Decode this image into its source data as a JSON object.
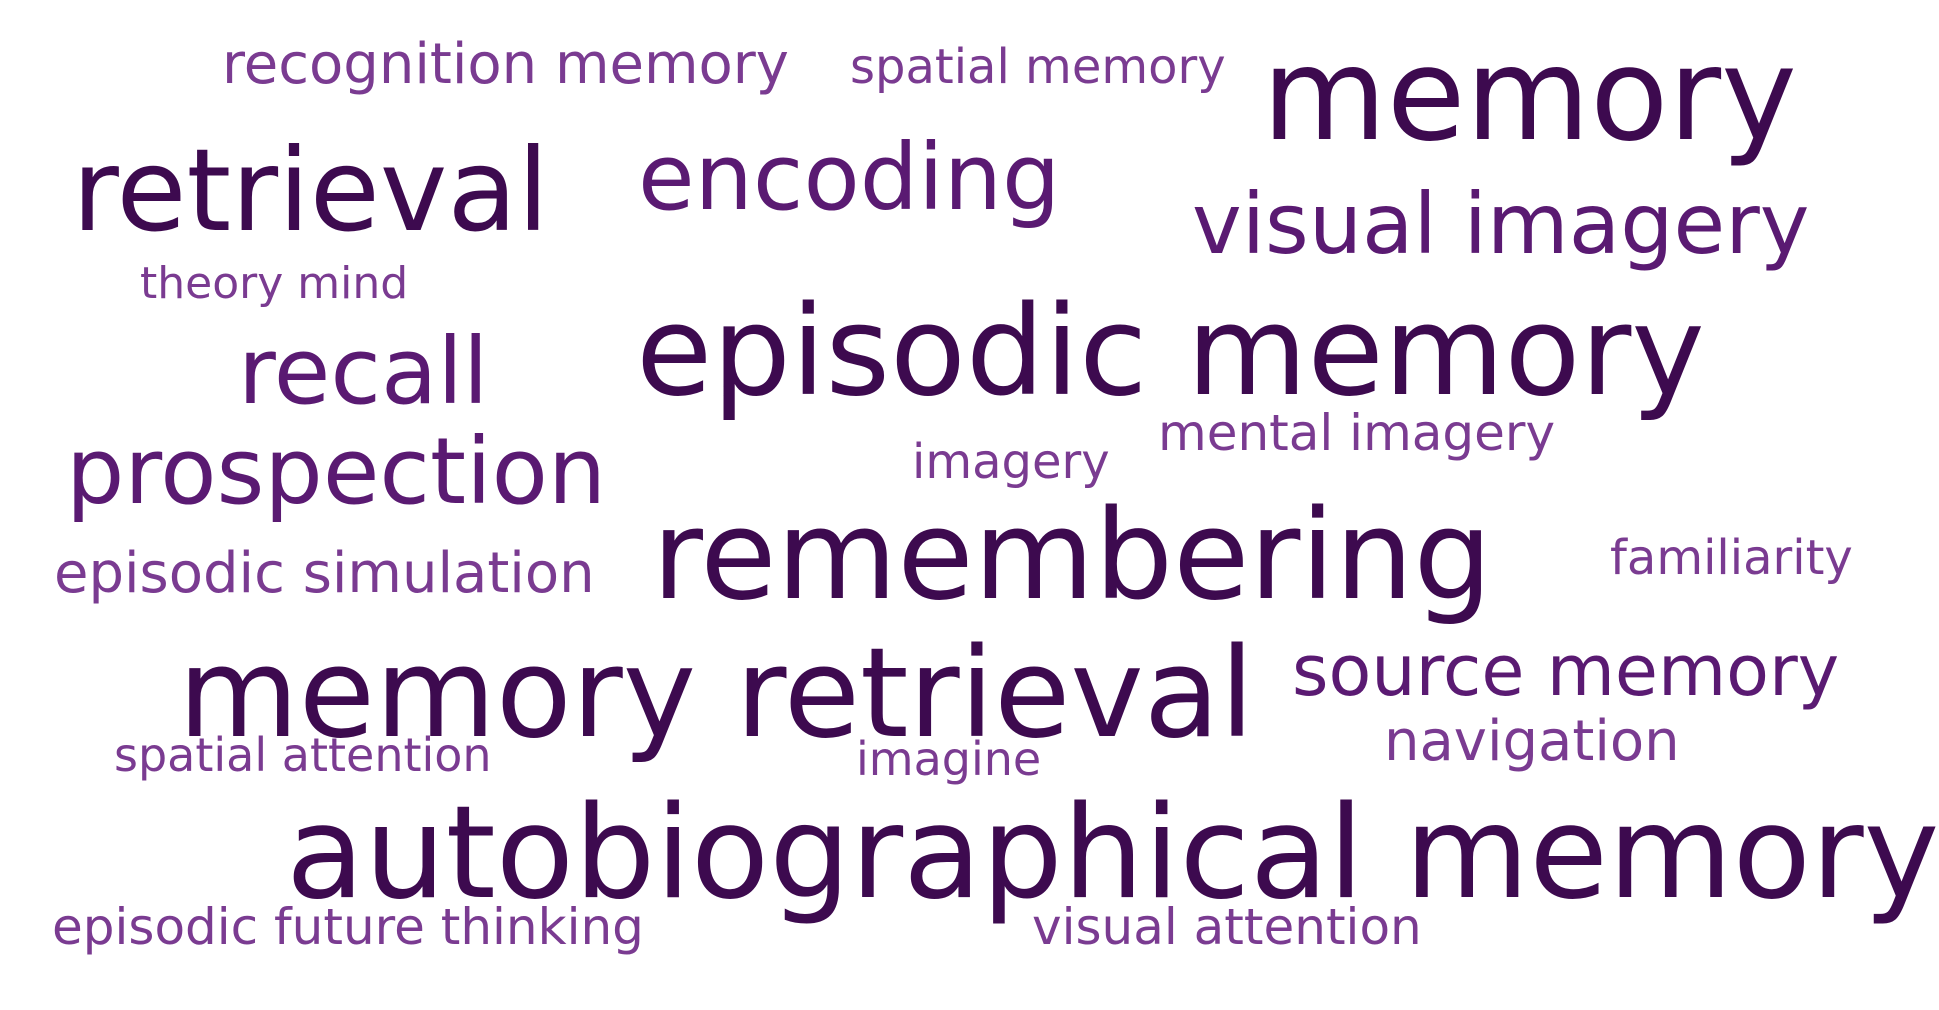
{
  "colors": {
    "dark": "#3d0a4f",
    "mid": "#5a1a72",
    "light": "#7a3b91",
    "background": "#ffffff"
  },
  "words": {
    "recognition_memory": "recognition memory",
    "spatial_memory": "spatial memory",
    "memory": "memory",
    "retrieval": "retrieval",
    "encoding": "encoding",
    "visual_imagery": "visual imagery",
    "theory_mind": "theory mind",
    "episodic_memory": "episodic memory",
    "recall": "recall",
    "mental_imagery": "mental imagery",
    "imagery": "imagery",
    "prospection": "prospection",
    "remembering": "remembering",
    "familiarity": "familiarity",
    "episodic_simulation": "episodic simulation",
    "memory_retrieval": "memory retrieval",
    "source_memory": "source memory",
    "spatial_attention": "spatial attention",
    "imagine": "imagine",
    "navigation": "navigation",
    "autobiographical_memory": "autobiographical memory",
    "episodic_future_thinking": "episodic future thinking",
    "visual_attention": "visual attention"
  }
}
